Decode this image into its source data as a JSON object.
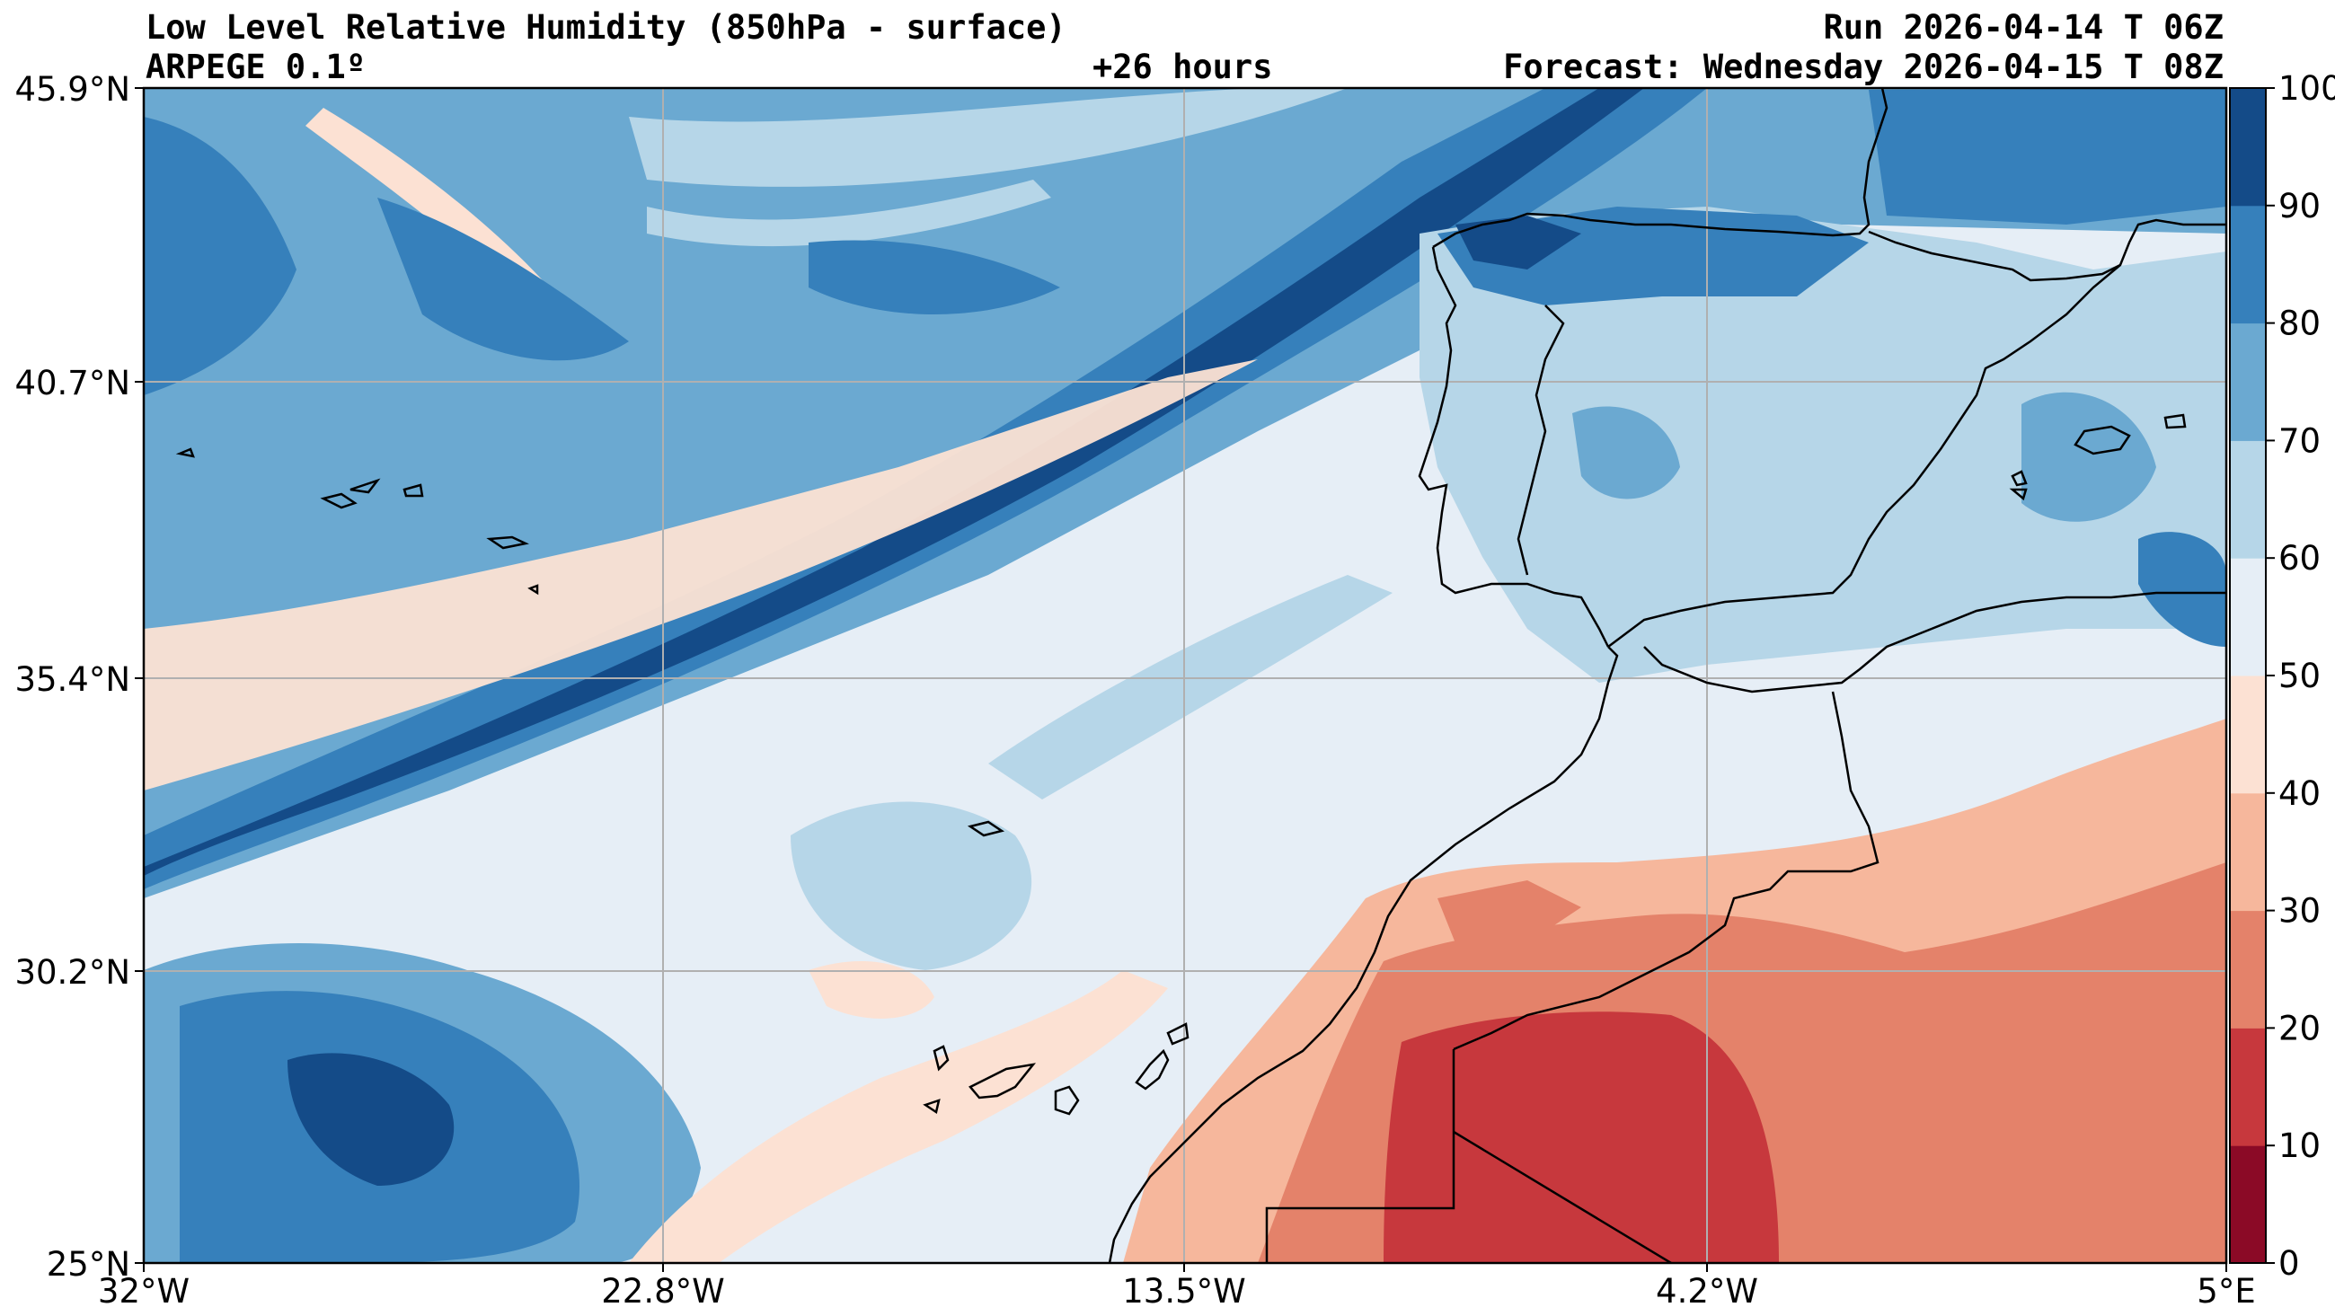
{
  "header": {
    "title": "Low Level Relative Humidity (850hPa - surface)",
    "model": "ARPEGE 0.1º",
    "lead": "+26 hours",
    "run": "Run 2026-04-14 T 06Z",
    "forecast": "Forecast: Wednesday 2026-04-15 T 08Z"
  },
  "axes": {
    "lat_labels": [
      "45.9°N",
      "40.7°N",
      "35.4°N",
      "30.2°N",
      "25°N"
    ],
    "lon_labels": [
      "32°W",
      "22.8°W",
      "13.5°W",
      "4.2°W",
      "5°E"
    ]
  },
  "colorbar": {
    "levels": [
      0,
      10,
      20,
      30,
      40,
      50,
      60,
      70,
      80,
      90,
      100
    ],
    "labels": [
      "0",
      "10",
      "20",
      "30",
      "40",
      "50",
      "60",
      "70",
      "80",
      "90",
      "100"
    ],
    "colors": [
      "#8b0a26",
      "#c7383d",
      "#e4826a",
      "#f6b79c",
      "#fce1d3",
      "#e6eef6",
      "#b6d6e8",
      "#6ba9d1",
      "#3680bb",
      "#144b88"
    ]
  },
  "icons": [
    "coastline",
    "border",
    "graticule"
  ]
}
